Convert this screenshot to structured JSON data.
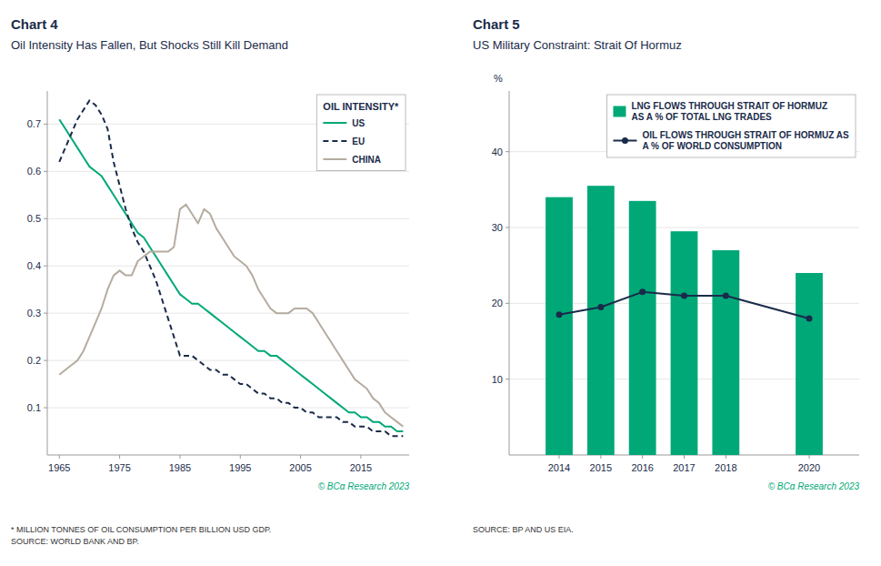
{
  "chart_data": [
    {
      "type": "line",
      "title": "Chart 4",
      "subtitle": "Oil Intensity Has Fallen, But Shocks Still Kill Demand",
      "footnote": "* MILLION TONNES OF OIL CONSUMPTION PER BILLION USD GDP.\nSOURCE: WORLD BANK AND BP.",
      "copyright": "© BCα Research 2023",
      "legend_title": "OIL INTENSITY*",
      "x": [
        1965,
        1966,
        1967,
        1968,
        1969,
        1970,
        1971,
        1972,
        1973,
        1974,
        1975,
        1976,
        1977,
        1978,
        1979,
        1980,
        1981,
        1982,
        1983,
        1984,
        1985,
        1986,
        1987,
        1988,
        1989,
        1990,
        1991,
        1992,
        1993,
        1994,
        1995,
        1996,
        1997,
        1998,
        1999,
        2000,
        2001,
        2002,
        2003,
        2004,
        2005,
        2006,
        2007,
        2008,
        2009,
        2010,
        2011,
        2012,
        2013,
        2014,
        2015,
        2016,
        2017,
        2018,
        2019,
        2020,
        2021,
        2022
      ],
      "series": [
        {
          "name": "US",
          "color": "#00a878",
          "line_style": "solid",
          "values": [
            0.71,
            0.69,
            0.67,
            0.65,
            0.63,
            0.61,
            0.6,
            0.59,
            0.57,
            0.55,
            0.53,
            0.51,
            0.49,
            0.47,
            0.46,
            0.44,
            0.42,
            0.4,
            0.38,
            0.36,
            0.34,
            0.33,
            0.32,
            0.32,
            0.31,
            0.3,
            0.29,
            0.28,
            0.27,
            0.26,
            0.25,
            0.24,
            0.23,
            0.22,
            0.22,
            0.21,
            0.21,
            0.2,
            0.19,
            0.18,
            0.17,
            0.16,
            0.15,
            0.14,
            0.13,
            0.12,
            0.11,
            0.1,
            0.09,
            0.09,
            0.08,
            0.08,
            0.07,
            0.07,
            0.06,
            0.06,
            0.05,
            0.05
          ]
        },
        {
          "name": "EU",
          "color": "#1a2b4a",
          "line_style": "dashed",
          "values": [
            0.62,
            0.65,
            0.68,
            0.71,
            0.73,
            0.75,
            0.74,
            0.72,
            0.69,
            0.62,
            0.57,
            0.52,
            0.48,
            0.45,
            0.43,
            0.4,
            0.37,
            0.33,
            0.29,
            0.25,
            0.21,
            0.21,
            0.21,
            0.2,
            0.19,
            0.18,
            0.18,
            0.17,
            0.17,
            0.16,
            0.15,
            0.15,
            0.14,
            0.13,
            0.13,
            0.12,
            0.12,
            0.11,
            0.11,
            0.1,
            0.1,
            0.09,
            0.09,
            0.08,
            0.08,
            0.08,
            0.08,
            0.07,
            0.07,
            0.06,
            0.06,
            0.06,
            0.05,
            0.05,
            0.05,
            0.04,
            0.04,
            0.04
          ]
        },
        {
          "name": "CHINA",
          "color": "#b5aca0",
          "line_style": "solid",
          "values": [
            0.17,
            0.18,
            0.19,
            0.2,
            0.22,
            0.25,
            0.28,
            0.31,
            0.35,
            0.38,
            0.39,
            0.38,
            0.38,
            0.41,
            0.42,
            0.43,
            0.43,
            0.43,
            0.43,
            0.44,
            0.52,
            0.53,
            0.51,
            0.49,
            0.52,
            0.51,
            0.48,
            0.46,
            0.44,
            0.42,
            0.41,
            0.4,
            0.38,
            0.35,
            0.33,
            0.31,
            0.3,
            0.3,
            0.3,
            0.31,
            0.31,
            0.31,
            0.3,
            0.28,
            0.26,
            0.24,
            0.22,
            0.2,
            0.18,
            0.16,
            0.15,
            0.14,
            0.12,
            0.11,
            0.09,
            0.08,
            0.07,
            0.06
          ]
        }
      ],
      "xlim": [
        1963,
        2023
      ],
      "ylim": [
        0,
        0.77
      ],
      "xticks": [
        1965,
        1975,
        1985,
        1995,
        2005,
        2015
      ],
      "yticks": [
        0.1,
        0.2,
        0.3,
        0.4,
        0.5,
        0.6,
        0.7
      ],
      "grid": true,
      "legend": "upper right"
    },
    {
      "type": "bar",
      "title": "Chart 5",
      "subtitle": "US Military Constraint: Strait Of Hormuz",
      "footnote": "SOURCE: BP AND US EIA.",
      "copyright": "© BCα Research 2023",
      "ylabel": "%",
      "x": [
        2014,
        2015,
        2016,
        2017,
        2018,
        2020
      ],
      "series": [
        {
          "name": "LNG FLOWS THROUGH STRAIT OF HORMUZ\nAS A % OF TOTAL LNG TRADES",
          "type": "bar",
          "color": "#00a878",
          "values": [
            34.0,
            35.5,
            33.5,
            29.5,
            27.0,
            24.0
          ]
        },
        {
          "name": "OIL FLOWS THROUGH STRAIT OF HORMUZ AS\nA % OF WORLD CONSUMPTION",
          "type": "line",
          "color": "#1a2b4a",
          "marker": "circle",
          "line_style": "solid",
          "values": [
            18.5,
            19.5,
            21.5,
            21.0,
            21.0,
            18.0
          ]
        }
      ],
      "xlim": [
        2012.8,
        2021.2
      ],
      "ylim": [
        0,
        48
      ],
      "xticks": [
        2014,
        2015,
        2016,
        2017,
        2018,
        2020
      ],
      "yticks": [
        10,
        20,
        30,
        40
      ],
      "grid": true,
      "legend": "upper right"
    }
  ]
}
